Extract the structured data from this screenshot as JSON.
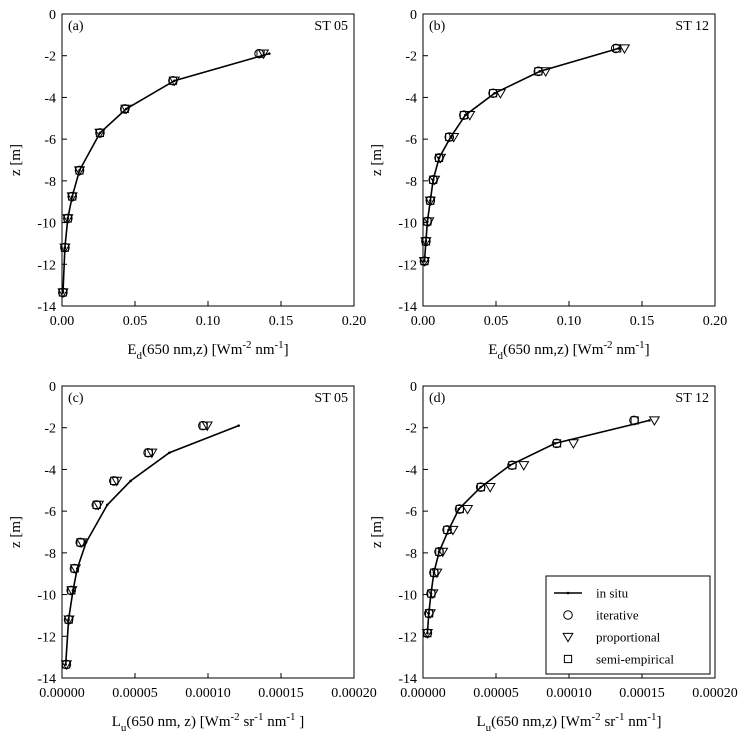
{
  "figure": {
    "legend": {
      "entries": [
        {
          "name": "in situ",
          "marker": "line"
        },
        {
          "name": "iterative",
          "marker": "circle"
        },
        {
          "name": "proportional",
          "marker": "triangle-down"
        },
        {
          "name": "semi-empirical",
          "marker": "square"
        }
      ],
      "placement": "bottom-right of panel (d)"
    }
  },
  "chart_data": [
    {
      "type": "line",
      "panel": "(a)",
      "station": "ST 05",
      "xlabel": {
        "main": "E",
        "sub": "d",
        "rest1": "(650 nm,z) [Wm",
        "sup1": "-2",
        "rest2": " nm",
        "sup2": "-1",
        "rest3": "]"
      },
      "ylabel": "z [m]",
      "xlim": [
        0,
        0.2
      ],
      "ylim": [
        -14,
        0
      ],
      "xticks": [
        "0.00",
        "0.05",
        "0.10",
        "0.15",
        "0.20"
      ],
      "xtick_values": [
        0,
        0.05,
        0.1,
        0.15,
        0.2
      ],
      "yticks": [
        "0",
        "-2",
        "-4",
        "-6",
        "-8",
        "-10",
        "-12",
        "-14"
      ],
      "ytick_values": [
        0,
        -2,
        -4,
        -6,
        -8,
        -10,
        -12,
        -14
      ],
      "grid": false,
      "series": [
        {
          "name": "in situ",
          "marker": "line",
          "x": [
            0.142,
            0.077,
            0.044,
            0.026,
            0.012,
            0.007,
            0.004,
            0.002,
            0.0007
          ],
          "y": [
            -1.9,
            -3.2,
            -4.55,
            -5.7,
            -7.5,
            -8.75,
            -9.8,
            -11.2,
            -13.35
          ]
        },
        {
          "name": "iterative",
          "marker": "circle",
          "x": [
            0.135,
            0.076,
            0.043,
            0.026,
            0.012,
            0.007,
            0.004,
            0.002,
            0.0006
          ],
          "y": [
            -1.9,
            -3.2,
            -4.55,
            -5.7,
            -7.5,
            -8.75,
            -9.8,
            -11.2,
            -13.35
          ]
        },
        {
          "name": "proportional",
          "marker": "triangle-down",
          "x": [
            0.138,
            0.077,
            0.044,
            0.026,
            0.012,
            0.007,
            0.004,
            0.002,
            0.0007
          ],
          "y": [
            -1.9,
            -3.2,
            -4.55,
            -5.7,
            -7.5,
            -8.75,
            -9.8,
            -11.2,
            -13.35
          ]
        },
        {
          "name": "semi-empirical",
          "marker": "square",
          "x": [
            0.136,
            0.076,
            0.043,
            0.026,
            0.012,
            0.007,
            0.004,
            0.002,
            0.0006
          ],
          "y": [
            -1.9,
            -3.2,
            -4.55,
            -5.7,
            -7.5,
            -8.75,
            -9.8,
            -11.2,
            -13.35
          ]
        }
      ]
    },
    {
      "type": "line",
      "panel": "(b)",
      "station": "ST 12",
      "xlabel": {
        "main": "E",
        "sub": "d",
        "rest1": "(650 nm,z) [Wm",
        "sup1": "-2",
        "rest2": " nm",
        "sup2": "-1",
        "rest3": "]"
      },
      "ylabel": "z [m]",
      "xlim": [
        0,
        0.2
      ],
      "ylim": [
        -14,
        0
      ],
      "xticks": [
        "0.00",
        "0.05",
        "0.10",
        "0.15",
        "0.20"
      ],
      "xtick_values": [
        0,
        0.05,
        0.1,
        0.15,
        0.2
      ],
      "yticks": [
        "0",
        "-2",
        "-4",
        "-6",
        "-8",
        "-10",
        "-12",
        "-14"
      ],
      "ytick_values": [
        0,
        -2,
        -4,
        -6,
        -8,
        -10,
        -12,
        -14
      ],
      "grid": false,
      "series": [
        {
          "name": "in situ",
          "marker": "line",
          "x": [
            0.134,
            0.08,
            0.049,
            0.029,
            0.019,
            0.011,
            0.007,
            0.005,
            0.003,
            0.002,
            0.001
          ],
          "y": [
            -1.65,
            -2.75,
            -3.8,
            -4.85,
            -5.9,
            -6.9,
            -7.95,
            -8.95,
            -9.95,
            -10.9,
            -11.85
          ]
        },
        {
          "name": "iterative",
          "marker": "circle",
          "x": [
            0.132,
            0.079,
            0.048,
            0.028,
            0.018,
            0.011,
            0.007,
            0.005,
            0.003,
            0.002,
            0.001
          ],
          "y": [
            -1.65,
            -2.75,
            -3.8,
            -4.85,
            -5.9,
            -6.9,
            -7.95,
            -8.95,
            -9.95,
            -10.9,
            -11.85
          ]
        },
        {
          "name": "proportional",
          "marker": "triangle-down",
          "x": [
            0.138,
            0.084,
            0.053,
            0.032,
            0.021,
            0.012,
            0.008,
            0.005,
            0.004,
            0.002,
            0.001
          ],
          "y": [
            -1.65,
            -2.75,
            -3.8,
            -4.85,
            -5.9,
            -6.9,
            -7.95,
            -8.95,
            -9.95,
            -10.9,
            -11.85
          ]
        },
        {
          "name": "semi-empirical",
          "marker": "square",
          "x": [
            0.133,
            0.079,
            0.048,
            0.028,
            0.018,
            0.011,
            0.007,
            0.005,
            0.003,
            0.002,
            0.001
          ],
          "y": [
            -1.65,
            -2.75,
            -3.8,
            -4.85,
            -5.9,
            -6.9,
            -7.95,
            -8.95,
            -9.95,
            -10.9,
            -11.85
          ]
        }
      ]
    },
    {
      "type": "line",
      "panel": "(c)",
      "station": "ST 05",
      "xlabel": {
        "main": "L",
        "sub": "u",
        "rest1": "(650 nm, z) [Wm",
        "sup1": "-2",
        "rest2": " sr",
        "sup2": "-1",
        "rest3": " nm",
        "sup3": "-1",
        "rest4": " ]"
      },
      "ylabel": "z [m]",
      "xlim": [
        0,
        0.0002
      ],
      "ylim": [
        -14,
        0
      ],
      "xticks": [
        "0.00000",
        "0.00005",
        "0.00010",
        "0.00015",
        "0.00020"
      ],
      "xtick_values": [
        0,
        5e-05,
        0.0001,
        0.00015,
        0.0002
      ],
      "yticks": [
        "0",
        "-2",
        "-4",
        "-6",
        "-8",
        "-10",
        "-12",
        "-14"
      ],
      "ytick_values": [
        0,
        -2,
        -4,
        -6,
        -8,
        -10,
        -12,
        -14
      ],
      "grid": false,
      "series": [
        {
          "name": "in situ",
          "marker": "line",
          "x": [
            0.000121,
            7.35e-05,
            4.7e-05,
            3.1e-05,
            1.65e-05,
            1.05e-05,
            7.5e-06,
            4.5e-06,
            2.5e-06
          ],
          "y": [
            -1.9,
            -3.2,
            -4.55,
            -5.7,
            -7.5,
            -8.75,
            -9.8,
            -11.2,
            -13.35
          ]
        },
        {
          "name": "iterative",
          "marker": "circle",
          "x": [
            9.65e-05,
            5.9e-05,
            3.55e-05,
            2.35e-05,
            1.25e-05,
            8.5e-06,
            6.3e-06,
            4.5e-06,
            3e-06
          ],
          "y": [
            -1.9,
            -3.2,
            -4.55,
            -5.7,
            -7.5,
            -8.75,
            -9.8,
            -11.2,
            -13.35
          ]
        },
        {
          "name": "proportional",
          "marker": "triangle-down",
          "x": [
            9.95e-05,
            6.15e-05,
            3.75e-05,
            2.5e-05,
            1.35e-05,
            9.2e-06,
            6.8e-06,
            4.8e-06,
            3e-06
          ],
          "y": [
            -1.9,
            -3.2,
            -4.55,
            -5.7,
            -7.5,
            -8.75,
            -9.8,
            -11.2,
            -13.35
          ]
        },
        {
          "name": "semi-empirical",
          "marker": "square",
          "x": [
            9.7e-05,
            5.95e-05,
            3.58e-05,
            2.38e-05,
            1.27e-05,
            8.7e-06,
            6.4e-06,
            4.6e-06,
            2.8e-06
          ],
          "y": [
            -1.9,
            -3.2,
            -4.55,
            -5.7,
            -7.5,
            -8.75,
            -9.8,
            -11.2,
            -13.35
          ]
        }
      ]
    },
    {
      "type": "line",
      "panel": "(d)",
      "station": "ST 12",
      "xlabel": {
        "main": "L",
        "sub": "u",
        "rest1": "(650 nm,z) [Wm",
        "sup1": "-2",
        "rest2": " sr",
        "sup2": "-1",
        "rest3": " nm",
        "sup3": "-1",
        "rest4": "]"
      },
      "ylabel": "z [m]",
      "xlim": [
        0,
        0.0002
      ],
      "ylim": [
        -14,
        0
      ],
      "xticks": [
        "0.00000",
        "0.00005",
        "0.00010",
        "0.00015",
        "0.00020"
      ],
      "xtick_values": [
        0,
        5e-05,
        0.0001,
        0.00015,
        0.0002
      ],
      "yticks": [
        "0",
        "-2",
        "-4",
        "-6",
        "-8",
        "-10",
        "-12",
        "-14"
      ],
      "ytick_values": [
        0,
        -2,
        -4,
        -6,
        -8,
        -10,
        -12,
        -14
      ],
      "grid": false,
      "series": [
        {
          "name": "in situ",
          "marker": "line",
          "x": [
            0.000155,
            9.05e-05,
            5.95e-05,
            3.95e-05,
            2.45e-05,
            1.75e-05,
            1.1e-05,
            7.5e-06,
            5.5e-06,
            4e-06,
            3e-06
          ],
          "y": [
            -1.65,
            -2.75,
            -3.8,
            -4.85,
            -5.9,
            -6.9,
            -7.95,
            -8.95,
            -9.95,
            -10.9,
            -11.85
          ]
        },
        {
          "name": "iterative",
          "marker": "circle",
          "x": [
            0.0001445,
            9.15e-05,
            6.1e-05,
            3.95e-05,
            2.5e-05,
            1.65e-05,
            1.1e-05,
            7.5e-06,
            5.5e-06,
            4e-06,
            3e-06
          ],
          "y": [
            -1.65,
            -2.75,
            -3.8,
            -4.85,
            -5.9,
            -6.9,
            -7.95,
            -8.95,
            -9.95,
            -10.9,
            -11.85
          ]
        },
        {
          "name": "proportional",
          "marker": "triangle-down",
          "x": [
            0.0001585,
            0.000103,
            6.9e-05,
            4.6e-05,
            3.05e-05,
            2.05e-05,
            1.35e-05,
            9.5e-06,
            6.8e-06,
            5e-06,
            3e-06
          ],
          "y": [
            -1.65,
            -2.75,
            -3.8,
            -4.85,
            -5.9,
            -6.9,
            -7.95,
            -8.95,
            -9.95,
            -10.9,
            -11.85
          ]
        },
        {
          "name": "semi-empirical",
          "marker": "square",
          "x": [
            0.000145,
            9.18e-05,
            6.12e-05,
            3.97e-05,
            2.52e-05,
            1.67e-05,
            1.12e-05,
            7.7e-06,
            5.7e-06,
            4.2e-06,
            3e-06
          ],
          "y": [
            -1.65,
            -2.75,
            -3.8,
            -4.85,
            -5.9,
            -6.9,
            -7.95,
            -8.95,
            -9.95,
            -10.9,
            -11.85
          ]
        }
      ]
    }
  ]
}
